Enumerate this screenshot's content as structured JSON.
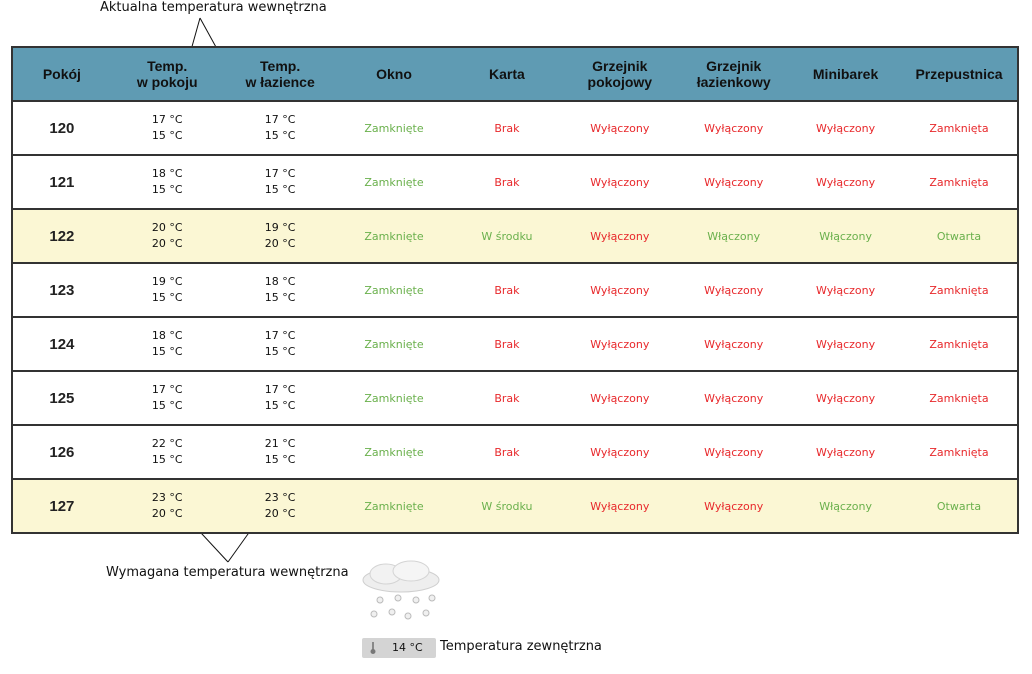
{
  "annotations": {
    "actual_temp": "Aktualna temperatura wewnętrzna",
    "required_temp": "Wymagana temperatura wewnętrzna",
    "outside_temp": "Temperatura zewnętrzna"
  },
  "headers": [
    {
      "line1": "Pokój",
      "line2": ""
    },
    {
      "line1": "Temp.",
      "line2": "w pokoju"
    },
    {
      "line1": "Temp.",
      "line2": "w łazience"
    },
    {
      "line1": "Okno",
      "line2": ""
    },
    {
      "line1": "Karta",
      "line2": ""
    },
    {
      "line1": "Grzejnik",
      "line2": "pokojowy"
    },
    {
      "line1": "Grzejnik",
      "line2": "łazienkowy"
    },
    {
      "line1": "Minibarek",
      "line2": ""
    },
    {
      "line1": "Przepustnica",
      "line2": ""
    }
  ],
  "rows": [
    {
      "room": "120",
      "room_actual": "17 °C",
      "room_required": "15 °C",
      "bath_actual": "17 °C",
      "bath_required": "15 °C",
      "window": "Zamknięte",
      "card": "Brak",
      "room_heater": "Wyłączony",
      "bath_heater": "Wyłączony",
      "minibar": "Wyłączony",
      "damper": "Zamknięta",
      "occupied": false
    },
    {
      "room": "121",
      "room_actual": "18 °C",
      "room_required": "15 °C",
      "bath_actual": "17 °C",
      "bath_required": "15 °C",
      "window": "Zamknięte",
      "card": "Brak",
      "room_heater": "Wyłączony",
      "bath_heater": "Wyłączony",
      "minibar": "Wyłączony",
      "damper": "Zamknięta",
      "occupied": false
    },
    {
      "room": "122",
      "room_actual": "20 °C",
      "room_required": "20 °C",
      "bath_actual": "19 °C",
      "bath_required": "20 °C",
      "window": "Zamknięte",
      "card": "W środku",
      "room_heater": "Wyłączony",
      "bath_heater": "Włączony",
      "minibar": "Włączony",
      "damper": "Otwarta",
      "occupied": true
    },
    {
      "room": "123",
      "room_actual": "19 °C",
      "room_required": "15 °C",
      "bath_actual": "18 °C",
      "bath_required": "15 °C",
      "window": "Zamknięte",
      "card": "Brak",
      "room_heater": "Wyłączony",
      "bath_heater": "Wyłączony",
      "minibar": "Wyłączony",
      "damper": "Zamknięta",
      "occupied": false
    },
    {
      "room": "124",
      "room_actual": "18 °C",
      "room_required": "15 °C",
      "bath_actual": "17 °C",
      "bath_required": "15 °C",
      "window": "Zamknięte",
      "card": "Brak",
      "room_heater": "Wyłączony",
      "bath_heater": "Wyłączony",
      "minibar": "Wyłączony",
      "damper": "Zamknięta",
      "occupied": false
    },
    {
      "room": "125",
      "room_actual": "17 °C",
      "room_required": "15 °C",
      "bath_actual": "17 °C",
      "bath_required": "15 °C",
      "window": "Zamknięte",
      "card": "Brak",
      "room_heater": "Wyłączony",
      "bath_heater": "Wyłączony",
      "minibar": "Wyłączony",
      "damper": "Zamknięta",
      "occupied": false
    },
    {
      "room": "126",
      "room_actual": "22 °C",
      "room_required": "15 °C",
      "bath_actual": "21 °C",
      "bath_required": "15 °C",
      "window": "Zamknięte",
      "card": "Brak",
      "room_heater": "Wyłączony",
      "bath_heater": "Wyłączony",
      "minibar": "Wyłączony",
      "damper": "Zamknięta",
      "occupied": false
    },
    {
      "room": "127",
      "room_actual": "23 °C",
      "room_required": "20 °C",
      "bath_actual": "23 °C",
      "bath_required": "20 °C",
      "window": "Zamknięte",
      "card": "W środku",
      "room_heater": "Wyłączony",
      "bath_heater": "Wyłączony",
      "minibar": "Włączony",
      "damper": "Otwarta",
      "occupied": true
    }
  ],
  "status_colors": {
    "Zamknięte": "#6ab04c",
    "W środku": "#6ab04c",
    "Włączony": "#6ab04c",
    "Otwarta": "#6ab04c",
    "Brak": "#e8282b",
    "Wyłączony": "#e8282b",
    "Zamknięta": "#e8282b"
  },
  "colors": {
    "header_bg": "#5f9bb3",
    "occupied_row_bg": "#fbf7d4"
  },
  "outside": {
    "value": "14 °C",
    "weather_icon": "snow-cloud-icon",
    "thermometer_icon": "thermometer-icon"
  }
}
